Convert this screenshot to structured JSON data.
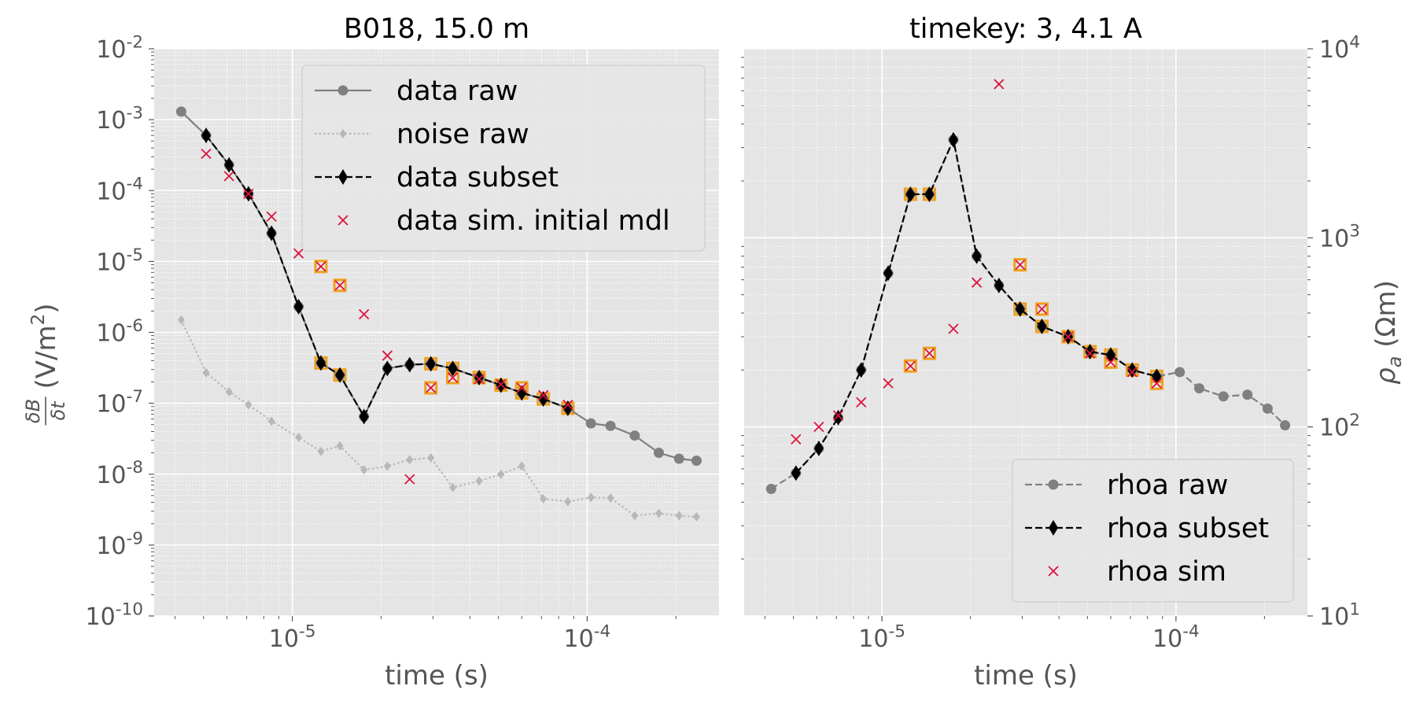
{
  "chart_data": [
    {
      "type": "line",
      "title": "B018, 15.0 m",
      "xlabel": "time (s)",
      "ylabel": "δB/δt (V/m²)",
      "xscale": "log",
      "yscale": "log",
      "xlim": [
        3.4e-06,
        0.00028
      ],
      "ylim": [
        1e-10,
        0.01
      ],
      "x_tick_labels": [
        "10^-5",
        "10^-4"
      ],
      "y_tick_labels": [
        "10^-10",
        "10^-9",
        "10^-8",
        "10^-7",
        "10^-6",
        "10^-5",
        "10^-4",
        "10^-3",
        "10^-2"
      ],
      "grid": true,
      "legend_position": "top-right",
      "series": [
        {
          "name": "data raw",
          "color": "#808080",
          "style": "solid",
          "marker": "circle",
          "x": [
            4.2e-06,
            5.1e-06,
            6.1e-06,
            7.1e-06,
            8.5e-06,
            1.05e-05,
            1.25e-05,
            1.45e-05,
            1.75e-05,
            2.1e-05,
            2.5e-05,
            2.95e-05,
            3.5e-05,
            4.3e-05,
            5.1e-05,
            6e-05,
            7.1e-05,
            8.6e-05,
            0.000103,
            0.00012,
            0.000145,
            0.000175,
            0.000205,
            0.000235
          ],
          "y": [
            0.0013,
            0.0006,
            0.00023,
            9e-05,
            2.5e-05,
            2.3e-06,
            3.7e-07,
            2.5e-07,
            6.5e-08,
            3.1e-07,
            3.5e-07,
            3.6e-07,
            3.1e-07,
            2.3e-07,
            1.8e-07,
            1.4e-07,
            1.15e-07,
            8.5e-08,
            5.2e-08,
            4.8e-08,
            3.5e-08,
            2e-08,
            1.65e-08,
            1.55e-08
          ]
        },
        {
          "name": "noise raw",
          "color": "#b8b8b8",
          "style": "dotted",
          "marker": "thin-diamond",
          "x": [
            4.2e-06,
            5.1e-06,
            6.1e-06,
            7.1e-06,
            8.5e-06,
            1.05e-05,
            1.25e-05,
            1.45e-05,
            1.75e-05,
            2.1e-05,
            2.5e-05,
            2.95e-05,
            3.5e-05,
            4.3e-05,
            5.1e-05,
            6e-05,
            7.1e-05,
            8.6e-05,
            0.000103,
            0.00012,
            0.000145,
            0.000175,
            0.000205,
            0.000235
          ],
          "y": [
            1.5e-06,
            2.7e-07,
            1.45e-07,
            9.5e-08,
            5.6e-08,
            3.3e-08,
            2.1e-08,
            2.5e-08,
            1.15e-08,
            1.3e-08,
            1.6e-08,
            1.7e-08,
            6.5e-09,
            8e-09,
            1e-08,
            1.3e-08,
            4.5e-09,
            4.1e-09,
            4.7e-09,
            4.6e-09,
            2.6e-09,
            2.8e-09,
            2.6e-09,
            2.5e-09
          ]
        },
        {
          "name": "data subset",
          "color": "#000000",
          "style": "dashed",
          "marker": "thin-diamond",
          "x": [
            5.1e-06,
            6.1e-06,
            7.1e-06,
            8.5e-06,
            1.05e-05,
            1.25e-05,
            1.45e-05,
            1.75e-05,
            2.1e-05,
            2.5e-05,
            2.95e-05,
            3.5e-05,
            4.3e-05,
            5.1e-05,
            6e-05,
            7.1e-05,
            8.6e-05
          ],
          "y": [
            0.0006,
            0.00023,
            9e-05,
            2.5e-05,
            2.3e-06,
            3.7e-07,
            2.5e-07,
            6.5e-08,
            3.1e-07,
            3.5e-07,
            3.6e-07,
            3.1e-07,
            2.3e-07,
            1.8e-07,
            1.4e-07,
            1.15e-07,
            8.5e-08
          ]
        },
        {
          "name": "data sim. initial mdl",
          "color": "#dc143c",
          "style": "none",
          "marker": "x",
          "x": [
            5.1e-06,
            6.1e-06,
            7.1e-06,
            8.5e-06,
            1.05e-05,
            1.25e-05,
            1.45e-05,
            1.75e-05,
            2.1e-05,
            2.5e-05,
            2.95e-05,
            3.5e-05,
            4.3e-05,
            5.1e-05,
            6e-05,
            7.1e-05,
            8.6e-05
          ],
          "y": [
            0.00033,
            0.00016,
            9e-05,
            4.3e-05,
            1.3e-05,
            8.5e-06,
            4.6e-06,
            1.8e-06,
            4.7e-07,
            8.5e-09,
            1.65e-07,
            2.3e-07,
            2.2e-07,
            1.85e-07,
            1.65e-07,
            1.3e-07,
            9.5e-08
          ]
        }
      ],
      "highlighted_x": [
        1.25e-05,
        1.45e-05,
        2.95e-05,
        3.5e-05,
        4.3e-05,
        5.1e-05,
        6e-05,
        7.1e-05,
        8.6e-05
      ],
      "highlight_color": "#f0a020"
    },
    {
      "type": "line",
      "title": "timekey: 3, 4.1 A",
      "xlabel": "time (s)",
      "ylabel": "ρa (Ωm)",
      "xscale": "log",
      "yscale": "log",
      "xlim": [
        3.4e-06,
        0.00028
      ],
      "ylim": [
        10,
        10000
      ],
      "x_tick_labels": [
        "10^-5",
        "10^-4"
      ],
      "y_tick_labels": [
        "10^1",
        "10^2",
        "10^3",
        "10^4"
      ],
      "y_axis_side": "right",
      "grid": true,
      "legend_position": "bottom-right",
      "series": [
        {
          "name": "rhoa raw",
          "color": "#808080",
          "style": "dashed",
          "marker": "circle",
          "x": [
            4.2e-06,
            5.1e-06,
            6.1e-06,
            7.1e-06,
            8.5e-06,
            1.05e-05,
            1.25e-05,
            1.45e-05,
            1.75e-05,
            2.1e-05,
            2.5e-05,
            2.95e-05,
            3.5e-05,
            4.3e-05,
            5.1e-05,
            6e-05,
            7.1e-05,
            8.6e-05,
            0.000103,
            0.00012,
            0.000145,
            0.000175,
            0.000205,
            0.000235
          ],
          "y": [
            47,
            57,
            77,
            112,
            200,
            650,
            1700,
            1700,
            3300,
            800,
            560,
            420,
            340,
            300,
            250,
            240,
            200,
            185,
            195,
            160,
            145,
            148,
            125,
            102
          ]
        },
        {
          "name": "rhoa subset",
          "color": "#000000",
          "style": "dashed",
          "marker": "thin-diamond",
          "x": [
            5.1e-06,
            6.1e-06,
            7.1e-06,
            8.5e-06,
            1.05e-05,
            1.25e-05,
            1.45e-05,
            1.75e-05,
            2.1e-05,
            2.5e-05,
            2.95e-05,
            3.5e-05,
            4.3e-05,
            5.1e-05,
            6e-05,
            7.1e-05,
            8.6e-05
          ],
          "y": [
            57,
            77,
            112,
            200,
            650,
            1700,
            1700,
            3300,
            800,
            560,
            420,
            340,
            300,
            250,
            240,
            200,
            185
          ]
        },
        {
          "name": "rhoa sim",
          "color": "#dc143c",
          "style": "none",
          "marker": "x",
          "x": [
            5.1e-06,
            6.1e-06,
            7.1e-06,
            8.5e-06,
            1.05e-05,
            1.25e-05,
            1.45e-05,
            1.75e-05,
            2.1e-05,
            2.5e-05,
            2.95e-05,
            3.5e-05,
            4.3e-05,
            5.1e-05,
            6e-05,
            7.1e-05,
            8.6e-05
          ],
          "y": [
            86,
            100,
            115,
            135,
            170,
            210,
            245,
            330,
            580,
            6500,
            720,
            420,
            300,
            245,
            220,
            195,
            170
          ]
        }
      ],
      "highlighted_x": [
        1.25e-05,
        1.45e-05,
        2.95e-05,
        3.5e-05,
        4.3e-05,
        5.1e-05,
        6e-05,
        7.1e-05,
        8.6e-05
      ],
      "highlight_color": "#f0a020"
    }
  ]
}
